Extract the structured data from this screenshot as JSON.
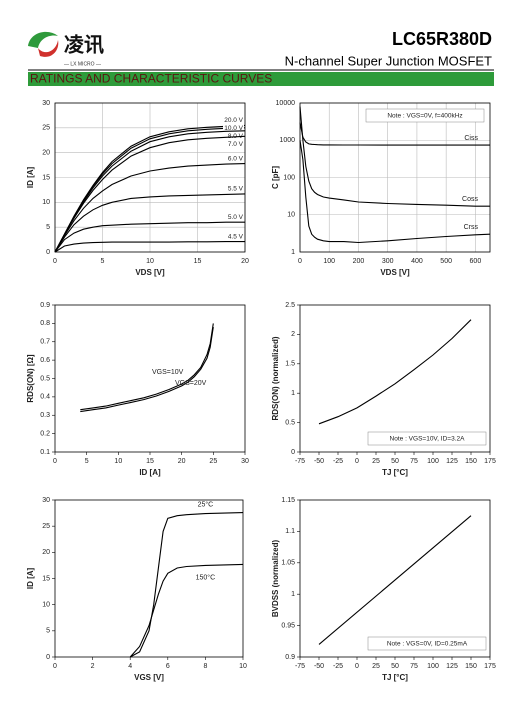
{
  "header": {
    "logo_text": "凌讯",
    "logo_sub": "— LX MICRO —",
    "part": "LC65R380D",
    "description": "N-channel Super Junction MOSFET",
    "section": "RATINGS AND CHARACTERISTIC CURVES"
  },
  "chart_data": [
    {
      "type": "line",
      "x_label": "VDS [V]",
      "y_label": "ID [A]",
      "x": [
        0,
        1,
        2,
        3,
        4,
        5,
        6,
        8,
        10,
        12,
        14,
        16,
        18,
        20
      ],
      "series": [
        {
          "name": "20.0 V",
          "color": "#000000",
          "values": [
            0,
            3.6,
            7.2,
            10.5,
            13.4,
            16,
            18.2,
            21.3,
            23.2,
            24.2,
            24.8,
            25.1,
            25.3,
            25.5
          ]
        },
        {
          "name": "10.0 V",
          "color": "#000000",
          "values": [
            0,
            3.6,
            7.1,
            10.3,
            13.2,
            15.7,
            17.8,
            20.9,
            22.8,
            23.8,
            24.4,
            24.7,
            24.9,
            25
          ]
        },
        {
          "name": "8.0 V",
          "color": "#000000",
          "values": [
            0,
            3.5,
            7,
            10.1,
            12.9,
            15.3,
            17.3,
            20.3,
            22.2,
            23.2,
            23.8,
            24.1,
            24.3,
            24.4
          ]
        },
        {
          "name": "7.0 V",
          "color": "#000000",
          "values": [
            0,
            3.5,
            6.8,
            9.8,
            12.4,
            14.6,
            16.5,
            19.3,
            21,
            22,
            22.6,
            22.9,
            23.1,
            23.3
          ]
        },
        {
          "name": "6.0 V",
          "color": "#000000",
          "values": [
            0,
            3.3,
            6.3,
            8.8,
            10.8,
            12.3,
            13.6,
            15.3,
            16.3,
            16.9,
            17.3,
            17.5,
            17.7,
            17.8
          ]
        },
        {
          "name": "5.5 V",
          "color": "#000000",
          "values": [
            0,
            3,
            5.5,
            7.2,
            8.5,
            9.4,
            10,
            10.8,
            11.1,
            11.3,
            11.4,
            11.5,
            11.6,
            11.7
          ]
        },
        {
          "name": "5.0 V",
          "color": "#000000",
          "values": [
            0,
            2.5,
            3.8,
            4.6,
            5,
            5.3,
            5.4,
            5.6,
            5.7,
            5.8,
            5.9,
            5.9,
            6,
            6
          ]
        },
        {
          "name": "4.5 V",
          "color": "#000000",
          "values": [
            0,
            1.2,
            1.6,
            1.8,
            1.9,
            1.95,
            2,
            2,
            2,
            2,
            2.05,
            2.05,
            2.1,
            2.1
          ]
        }
      ],
      "xlim": [
        0,
        20
      ],
      "xticks": [
        0,
        5,
        10,
        15,
        20
      ],
      "ylim": [
        0,
        30
      ],
      "yticks": [
        0,
        5,
        10,
        15,
        20,
        25,
        30
      ],
      "grid": true
    },
    {
      "type": "line",
      "x_label": "VDS [V]",
      "y_label": "C [pF]",
      "note": "Note : VGS=0V, f=400kHz",
      "log_y": true,
      "x": [
        0,
        10,
        20,
        30,
        40,
        50,
        60,
        80,
        100,
        150,
        200,
        300,
        400,
        500,
        600,
        650
      ],
      "series": [
        {
          "name": "Ciss",
          "color": "#000000",
          "values": [
            3000,
            1200,
            900,
            800,
            780,
            770,
            760,
            750,
            750,
            745,
            745,
            740,
            740,
            740,
            740,
            740
          ]
        },
        {
          "name": "Coss",
          "color": "#000000",
          "values": [
            8000,
            1000,
            200,
            80,
            50,
            40,
            35,
            30,
            28,
            25,
            22,
            20,
            19,
            18,
            17,
            17
          ]
        },
        {
          "name": "Crss",
          "color": "#000000",
          "values": [
            1000,
            300,
            30,
            5,
            3,
            2.5,
            2.2,
            2,
            1.9,
            1.9,
            1.8,
            2,
            2.3,
            2.6,
            2.9,
            3
          ]
        }
      ],
      "xlim": [
        0,
        650
      ],
      "xticks": [
        0,
        100,
        200,
        300,
        400,
        500,
        600
      ],
      "ylim": [
        1,
        10000
      ],
      "yticks": [
        1,
        10,
        100,
        1000,
        10000
      ],
      "grid": true
    },
    {
      "type": "line",
      "x_label": "ID [A]",
      "y_label": "RDS(ON) [Ω]",
      "x": [
        4,
        6,
        8,
        10,
        12,
        14,
        16,
        18,
        20,
        21,
        22,
        23,
        24,
        24.5,
        25
      ],
      "series": [
        {
          "name": "VGS=10V",
          "color": "#000000",
          "values": [
            0.33,
            0.34,
            0.35,
            0.365,
            0.38,
            0.395,
            0.415,
            0.44,
            0.47,
            0.49,
            0.52,
            0.56,
            0.63,
            0.69,
            0.8
          ]
        },
        {
          "name": "VGS=20V",
          "color": "#000000",
          "values": [
            0.32,
            0.33,
            0.34,
            0.355,
            0.37,
            0.385,
            0.405,
            0.43,
            0.46,
            0.48,
            0.51,
            0.55,
            0.61,
            0.67,
            0.78
          ]
        }
      ],
      "xlim": [
        0,
        30
      ],
      "xticks": [
        0,
        5,
        10,
        15,
        20,
        25,
        30
      ],
      "ylim": [
        0.1,
        0.9
      ],
      "yticks": [
        0.1,
        0.2,
        0.3,
        0.4,
        0.5,
        0.6,
        0.7,
        0.8,
        0.9
      ],
      "grid": false
    },
    {
      "type": "line",
      "x_label": "TJ [°C]",
      "y_label": "RDS(ON) (normalized)",
      "note": "Note : VGS=10V, ID=3.2A",
      "x": [
        -50,
        -25,
        0,
        25,
        50,
        75,
        100,
        125,
        150
      ],
      "series": [
        {
          "color": "#000000",
          "values": [
            0.48,
            0.6,
            0.75,
            0.95,
            1.16,
            1.4,
            1.65,
            1.93,
            2.25
          ]
        }
      ],
      "xlim": [
        -75,
        175
      ],
      "xticks": [
        -75,
        -50,
        -25,
        0,
        25,
        50,
        75,
        100,
        125,
        150,
        175
      ],
      "ylim": [
        0,
        2.5
      ],
      "yticks": [
        0,
        0.5,
        1,
        1.5,
        2,
        2.5
      ],
      "grid": false
    },
    {
      "type": "line",
      "x_label": "VGS [V]",
      "y_label": "ID [A]",
      "x": [
        4,
        4.5,
        5,
        5.25,
        5.5,
        5.75,
        6,
        6.5,
        7,
        8,
        10
      ],
      "series": [
        {
          "name": "25°C",
          "color": "#000000",
          "values": [
            0,
            1,
            5,
            10,
            17,
            24,
            26.5,
            27,
            27.2,
            27.4,
            27.6
          ]
        },
        {
          "name": "150°C",
          "color": "#000000",
          "values": [
            0,
            2,
            6,
            9,
            12,
            14.5,
            16,
            17,
            17.3,
            17.5,
            17.7
          ]
        }
      ],
      "xlim": [
        0,
        10
      ],
      "xticks": [
        0,
        2,
        4,
        6,
        8,
        10
      ],
      "ylim": [
        0,
        30
      ],
      "yticks": [
        0,
        5,
        10,
        15,
        20,
        25,
        30
      ],
      "grid": false
    },
    {
      "type": "line",
      "x_label": "TJ [°C]",
      "y_label": "BVDSS (normalized)",
      "note": "Note : VGS=0V, ID=0.25mA",
      "x": [
        -50,
        150
      ],
      "series": [
        {
          "color": "#000000",
          "values": [
            0.92,
            1.125
          ]
        }
      ],
      "xlim": [
        -75,
        175
      ],
      "xticks": [
        -75,
        -50,
        -25,
        0,
        25,
        50,
        75,
        100,
        125,
        150,
        175
      ],
      "ylim": [
        0.9,
        1.15
      ],
      "yticks": [
        0.9,
        0.95,
        1,
        1.05,
        1.1,
        1.15
      ],
      "grid": false
    }
  ]
}
